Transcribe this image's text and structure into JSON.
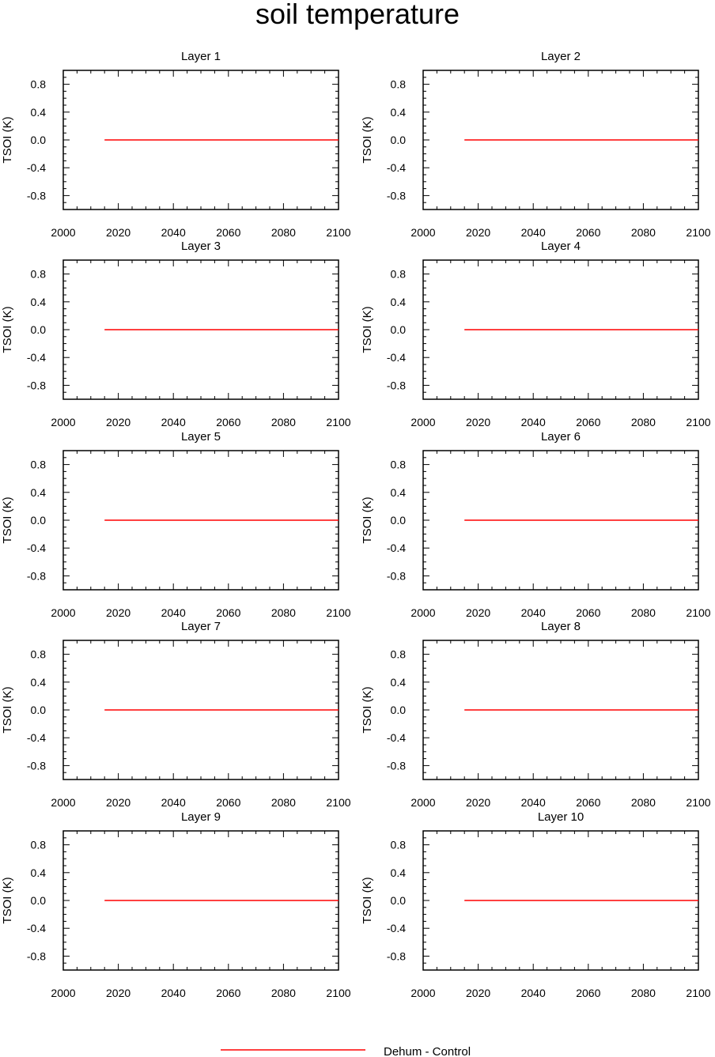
{
  "title": "soil temperature",
  "legend": {
    "placement": "bottom-center",
    "entries": [
      {
        "label": "Dehum - Control",
        "color": "#ff0000"
      }
    ]
  },
  "chart_data": [
    {
      "type": "line",
      "title": "Layer 1",
      "xlabel": "",
      "ylabel": "TSOI  (K)",
      "xlim": [
        2000,
        2100
      ],
      "ylim": [
        -1,
        1
      ],
      "xticks": [
        2000,
        2020,
        2040,
        2060,
        2080,
        2100
      ],
      "yticks": [
        -0.8,
        -0.4,
        0.0,
        0.4,
        0.8
      ],
      "ytick_labels": [
        "-0.8",
        "-0.4",
        "0.0",
        "0.4",
        "0.8"
      ],
      "grid": false,
      "series": [
        {
          "name": "Dehum - Control",
          "color": "#ff0000",
          "x": [
            2015,
            2100
          ],
          "y": [
            0.0,
            0.0
          ]
        }
      ]
    },
    {
      "type": "line",
      "title": "Layer 2",
      "xlabel": "",
      "ylabel": "TSOI  (K)",
      "xlim": [
        2000,
        2100
      ],
      "ylim": [
        -1,
        1
      ],
      "xticks": [
        2000,
        2020,
        2040,
        2060,
        2080,
        2100
      ],
      "yticks": [
        -0.8,
        -0.4,
        0.0,
        0.4,
        0.8
      ],
      "ytick_labels": [
        "-0.8",
        "-0.4",
        "0.0",
        "0.4",
        "0.8"
      ],
      "grid": false,
      "series": [
        {
          "name": "Dehum - Control",
          "color": "#ff0000",
          "x": [
            2015,
            2100
          ],
          "y": [
            0.0,
            0.0
          ]
        }
      ]
    },
    {
      "type": "line",
      "title": "Layer 3",
      "xlabel": "",
      "ylabel": "TSOI  (K)",
      "xlim": [
        2000,
        2100
      ],
      "ylim": [
        -1,
        1
      ],
      "xticks": [
        2000,
        2020,
        2040,
        2060,
        2080,
        2100
      ],
      "yticks": [
        -0.8,
        -0.4,
        0.0,
        0.4,
        0.8
      ],
      "ytick_labels": [
        "-0.8",
        "-0.4",
        "0.0",
        "0.4",
        "0.8"
      ],
      "grid": false,
      "series": [
        {
          "name": "Dehum - Control",
          "color": "#ff0000",
          "x": [
            2015,
            2100
          ],
          "y": [
            0.0,
            0.0
          ]
        }
      ]
    },
    {
      "type": "line",
      "title": "Layer 4",
      "xlabel": "",
      "ylabel": "TSOI  (K)",
      "xlim": [
        2000,
        2100
      ],
      "ylim": [
        -1,
        1
      ],
      "xticks": [
        2000,
        2020,
        2040,
        2060,
        2080,
        2100
      ],
      "yticks": [
        -0.8,
        -0.4,
        0.0,
        0.4,
        0.8
      ],
      "ytick_labels": [
        "-0.8",
        "-0.4",
        "0.0",
        "0.4",
        "0.8"
      ],
      "grid": false,
      "series": [
        {
          "name": "Dehum - Control",
          "color": "#ff0000",
          "x": [
            2015,
            2100
          ],
          "y": [
            0.0,
            0.0
          ]
        }
      ]
    },
    {
      "type": "line",
      "title": "Layer 5",
      "xlabel": "",
      "ylabel": "TSOI  (K)",
      "xlim": [
        2000,
        2100
      ],
      "ylim": [
        -1,
        1
      ],
      "xticks": [
        2000,
        2020,
        2040,
        2060,
        2080,
        2100
      ],
      "yticks": [
        -0.8,
        -0.4,
        0.0,
        0.4,
        0.8
      ],
      "ytick_labels": [
        "-0.8",
        "-0.4",
        "0.0",
        "0.4",
        "0.8"
      ],
      "grid": false,
      "series": [
        {
          "name": "Dehum - Control",
          "color": "#ff0000",
          "x": [
            2015,
            2100
          ],
          "y": [
            0.0,
            0.0
          ]
        }
      ]
    },
    {
      "type": "line",
      "title": "Layer 6",
      "xlabel": "",
      "ylabel": "TSOI  (K)",
      "xlim": [
        2000,
        2100
      ],
      "ylim": [
        -1,
        1
      ],
      "xticks": [
        2000,
        2020,
        2040,
        2060,
        2080,
        2100
      ],
      "yticks": [
        -0.8,
        -0.4,
        0.0,
        0.4,
        0.8
      ],
      "ytick_labels": [
        "-0.8",
        "-0.4",
        "0.0",
        "0.4",
        "0.8"
      ],
      "grid": false,
      "series": [
        {
          "name": "Dehum - Control",
          "color": "#ff0000",
          "x": [
            2015,
            2100
          ],
          "y": [
            0.0,
            0.0
          ]
        }
      ]
    },
    {
      "type": "line",
      "title": "Layer 7",
      "xlabel": "",
      "ylabel": "TSOI  (K)",
      "xlim": [
        2000,
        2100
      ],
      "ylim": [
        -1,
        1
      ],
      "xticks": [
        2000,
        2020,
        2040,
        2060,
        2080,
        2100
      ],
      "yticks": [
        -0.8,
        -0.4,
        0.0,
        0.4,
        0.8
      ],
      "ytick_labels": [
        "-0.8",
        "-0.4",
        "0.0",
        "0.4",
        "0.8"
      ],
      "grid": false,
      "series": [
        {
          "name": "Dehum - Control",
          "color": "#ff0000",
          "x": [
            2015,
            2100
          ],
          "y": [
            0.0,
            0.0
          ]
        }
      ]
    },
    {
      "type": "line",
      "title": "Layer 8",
      "xlabel": "",
      "ylabel": "TSOI  (K)",
      "xlim": [
        2000,
        2100
      ],
      "ylim": [
        -1,
        1
      ],
      "xticks": [
        2000,
        2020,
        2040,
        2060,
        2080,
        2100
      ],
      "yticks": [
        -0.8,
        -0.4,
        0.0,
        0.4,
        0.8
      ],
      "ytick_labels": [
        "-0.8",
        "-0.4",
        "0.0",
        "0.4",
        "0.8"
      ],
      "grid": false,
      "series": [
        {
          "name": "Dehum - Control",
          "color": "#ff0000",
          "x": [
            2015,
            2100
          ],
          "y": [
            0.0,
            0.0
          ]
        }
      ]
    },
    {
      "type": "line",
      "title": "Layer 9",
      "xlabel": "",
      "ylabel": "TSOI  (K)",
      "xlim": [
        2000,
        2100
      ],
      "ylim": [
        -1,
        1
      ],
      "xticks": [
        2000,
        2020,
        2040,
        2060,
        2080,
        2100
      ],
      "yticks": [
        -0.8,
        -0.4,
        0.0,
        0.4,
        0.8
      ],
      "ytick_labels": [
        "-0.8",
        "-0.4",
        "0.0",
        "0.4",
        "0.8"
      ],
      "grid": false,
      "series": [
        {
          "name": "Dehum - Control",
          "color": "#ff0000",
          "x": [
            2015,
            2100
          ],
          "y": [
            0.0,
            0.0
          ]
        }
      ]
    },
    {
      "type": "line",
      "title": "Layer 10",
      "xlabel": "",
      "ylabel": "TSOI  (K)",
      "xlim": [
        2000,
        2100
      ],
      "ylim": [
        -1,
        1
      ],
      "xticks": [
        2000,
        2020,
        2040,
        2060,
        2080,
        2100
      ],
      "yticks": [
        -0.8,
        -0.4,
        0.0,
        0.4,
        0.8
      ],
      "ytick_labels": [
        "-0.8",
        "-0.4",
        "0.0",
        "0.4",
        "0.8"
      ],
      "grid": false,
      "series": [
        {
          "name": "Dehum - Control",
          "color": "#ff0000",
          "x": [
            2015,
            2100
          ],
          "y": [
            0.0,
            0.0
          ]
        }
      ]
    }
  ]
}
